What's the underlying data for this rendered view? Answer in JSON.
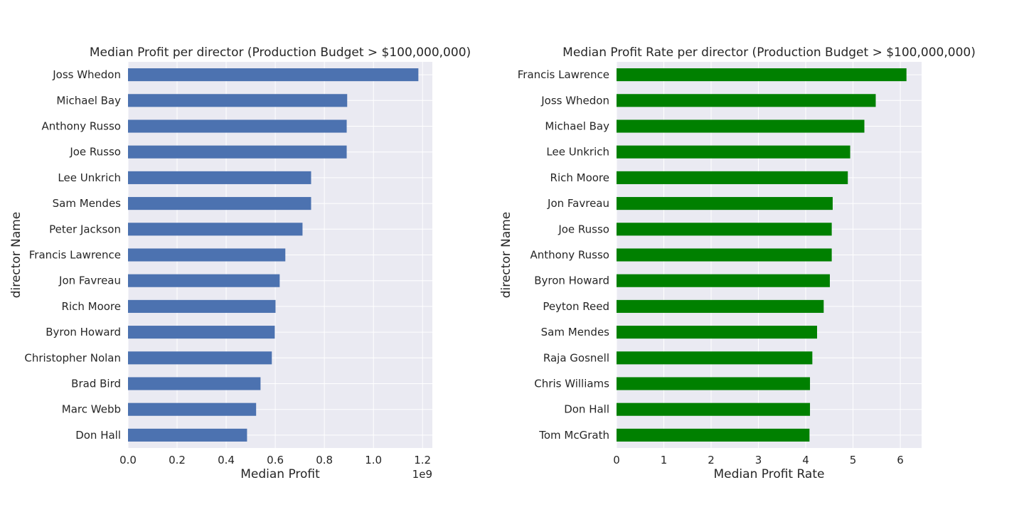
{
  "chart_data": [
    {
      "type": "bar",
      "orientation": "horizontal",
      "title": "Median Profit per director (Production Budget > $100,000,000)",
      "xlabel": "Median Profit",
      "ylabel": "director Name",
      "x_offset_label": "1e9",
      "xlim": [
        0,
        1.24
      ],
      "xticks": [
        0.0,
        0.2,
        0.4,
        0.6,
        0.8,
        1.0,
        1.2
      ],
      "xtick_labels": [
        "0.0",
        "0.2",
        "0.4",
        "0.6",
        "0.8",
        "1.0",
        "1.2"
      ],
      "grid": true,
      "bar_color": "#4c72b0",
      "background_color": "#eaeaf2",
      "categories": [
        "Don Hall",
        "Marc Webb",
        "Brad Bird",
        "Christopher Nolan",
        "Byron Howard",
        "Rich Moore",
        "Jon Favreau",
        "Francis Lawrence",
        "Peter Jackson",
        "Sam Mendes",
        "Lee Unkrich",
        "Joe Russo",
        "Anthony Russo",
        "Michael Bay",
        "Joss Whedon"
      ],
      "values": [
        0.485,
        0.522,
        0.54,
        0.586,
        0.598,
        0.601,
        0.618,
        0.641,
        0.711,
        0.746,
        0.746,
        0.891,
        0.891,
        0.893,
        1.183
      ]
    },
    {
      "type": "bar",
      "orientation": "horizontal",
      "title": "Median Profit Rate per director (Production Budget > $100,000,000)",
      "xlabel": "Median Profit Rate",
      "ylabel": "director Name",
      "x_offset_label": "",
      "xlim": [
        0,
        6.45
      ],
      "xticks": [
        0,
        1,
        2,
        3,
        4,
        5,
        6
      ],
      "xtick_labels": [
        "0",
        "1",
        "2",
        "3",
        "4",
        "5",
        "6"
      ],
      "grid": true,
      "bar_color": "#008000",
      "background_color": "#eaeaf2",
      "categories": [
        "Tom McGrath",
        "Don Hall",
        "Chris Williams",
        "Raja Gosnell",
        "Sam Mendes",
        "Peyton Reed",
        "Byron Howard",
        "Anthony Russo",
        "Joe Russo",
        "Jon Favreau",
        "Rich Moore",
        "Lee Unkrich",
        "Michael Bay",
        "Joss Whedon",
        "Francis Lawrence"
      ],
      "values": [
        4.08,
        4.09,
        4.09,
        4.14,
        4.24,
        4.38,
        4.51,
        4.55,
        4.55,
        4.57,
        4.89,
        4.94,
        5.24,
        5.48,
        6.13
      ]
    }
  ]
}
